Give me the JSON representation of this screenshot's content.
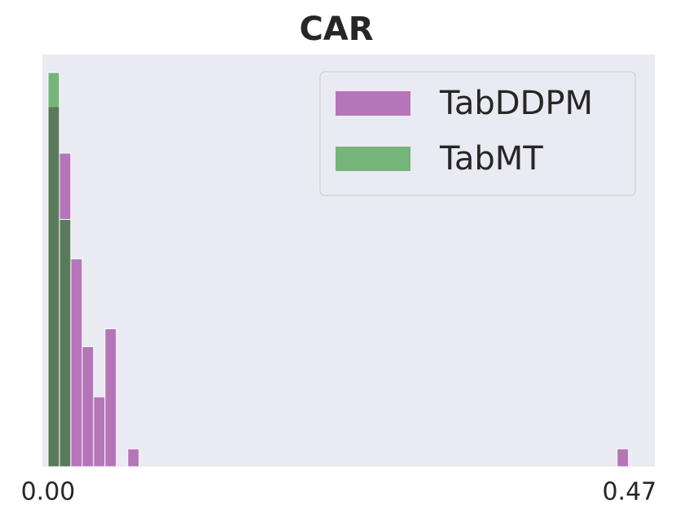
{
  "chart_data": {
    "type": "histogram",
    "title": "CAR",
    "xlim": [
      -0.0046,
      0.4905
    ],
    "ylim": [
      0,
      23
    ],
    "xticks": [
      {
        "value": 0,
        "label": "0.00"
      },
      0.47
    ],
    "alpha": 0.5,
    "legend": "upper right",
    "background": "#eaeaf2",
    "series": [
      {
        "name": "TabDDPM",
        "color": "#800080",
        "bins": [
          0,
          0.0092,
          0.0184,
          0.0276,
          0.0368,
          0.046,
          0.0552,
          0.0644,
          0.0736,
          0.0828,
          0.092,
          0.1012,
          0.1104,
          0.1196,
          0.1288,
          0.138,
          0.1472,
          0.1564,
          0.1656,
          0.1748,
          0.184,
          0.1932,
          0.2024,
          0.2116,
          0.2208,
          0.23,
          0.2392,
          0.2484,
          0.2576,
          0.2668,
          0.276,
          0.2852,
          0.2944,
          0.3036,
          0.3128,
          0.322,
          0.3312,
          0.3404,
          0.3496,
          0.3588,
          0.368,
          0.3772,
          0.3864,
          0.3956,
          0.4048,
          0.414,
          0.4232,
          0.4324,
          0.4416,
          0.4508,
          0.46,
          0.4692
        ],
        "values": [
          20.1,
          17.5,
          11.6,
          6.7,
          3.9,
          7.7,
          0,
          1.0,
          0,
          0,
          0,
          0,
          0,
          0,
          0,
          0,
          0,
          0,
          0,
          0,
          0,
          0,
          0,
          0,
          0,
          0,
          0,
          0,
          0,
          0,
          0,
          0,
          0,
          0,
          0,
          0,
          0,
          0,
          0,
          0,
          0,
          0,
          0,
          0,
          0,
          0,
          0,
          0,
          0,
          0,
          1.0
        ]
      },
      {
        "name": "TabMT",
        "color": "#008000",
        "bins": [
          0,
          0.0092,
          0.0184
        ],
        "values": [
          22.0,
          13.8
        ]
      }
    ]
  }
}
